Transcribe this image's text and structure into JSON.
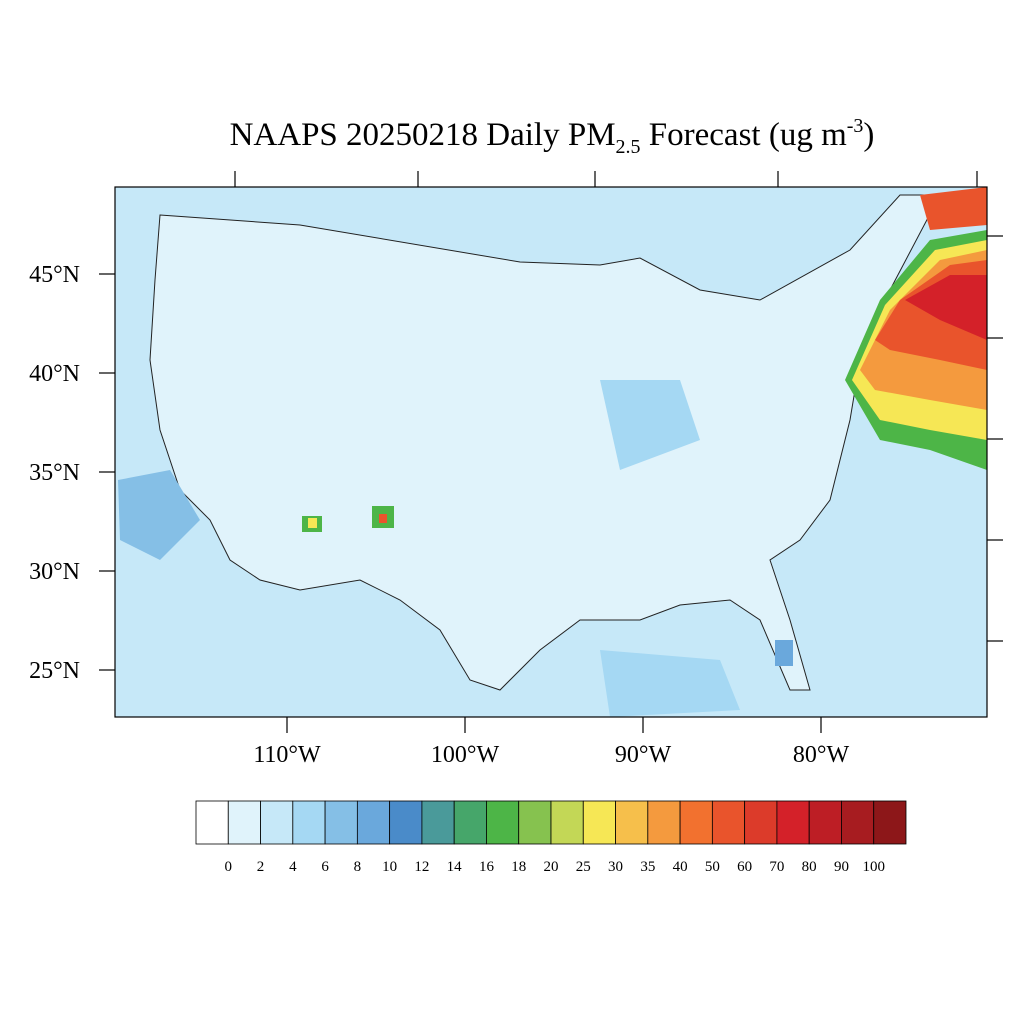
{
  "map": {
    "title": {
      "prefix": "NAAPS 20250218 Daily PM",
      "subscript": "2.5",
      "middle": " Forecast (ug m",
      "superscript": "-3",
      "suffix": ")"
    },
    "lat_labels": [
      {
        "value": 45,
        "label": "45°N"
      },
      {
        "value": 40,
        "label": "40°N"
      },
      {
        "value": 35,
        "label": "35°N"
      },
      {
        "value": 30,
        "label": "30°N"
      },
      {
        "value": 25,
        "label": "25°N"
      }
    ],
    "lon_labels": [
      {
        "value": -110,
        "label": "110°W"
      },
      {
        "value": -100,
        "label": "100°W"
      },
      {
        "value": -90,
        "label": "90°W"
      },
      {
        "value": -80,
        "label": "80°W"
      }
    ],
    "colorbar": {
      "levels": [
        0,
        2,
        4,
        6,
        8,
        10,
        12,
        14,
        16,
        18,
        20,
        25,
        30,
        35,
        40,
        50,
        60,
        70,
        80,
        90,
        100
      ],
      "colors": [
        "#ffffff",
        "#e0f3fb",
        "#c6e8f8",
        "#a5d8f3",
        "#85bfe6",
        "#6aa8dc",
        "#4a8bc9",
        "#4a9a9a",
        "#46a66a",
        "#4db547",
        "#86c24f",
        "#c3d756",
        "#f6e755",
        "#f6bf4b",
        "#f49a3e",
        "#f2712f",
        "#e9542c",
        "#dc3b2a",
        "#d42129",
        "#bd1e25",
        "#a71c20",
        "#8d1719"
      ]
    }
  }
}
